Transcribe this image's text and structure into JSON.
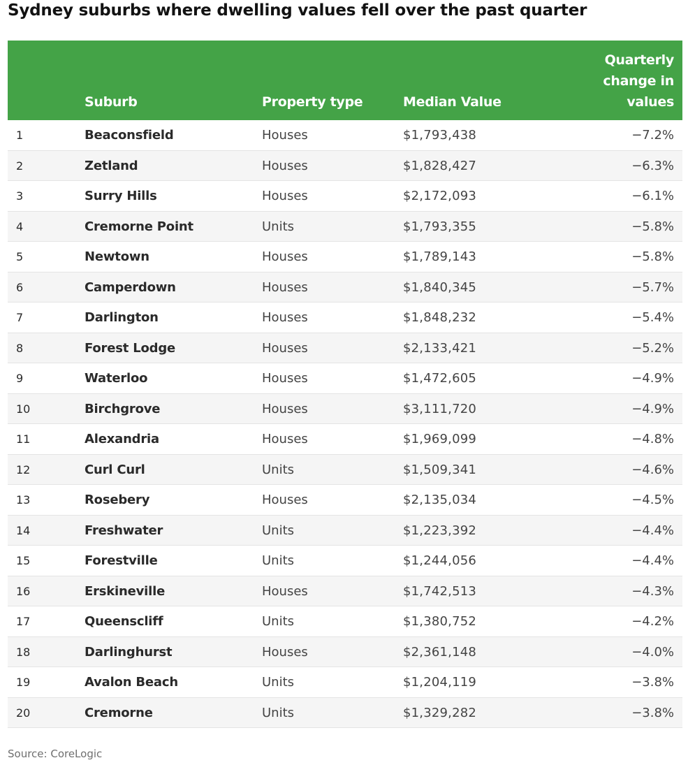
{
  "title": "Sydney suburbs where dwelling values fell over the past quarter",
  "table": {
    "headers": {
      "rank": "",
      "suburb": "Suburb",
      "property_type": "Property type",
      "median_value": "Median Value",
      "quarterly_change": "Quarterly change in values"
    },
    "rows": [
      {
        "rank": "1",
        "suburb": "Beaconsfield",
        "type": "Houses",
        "value": "$1,793,438",
        "change": "−7.2%"
      },
      {
        "rank": "2",
        "suburb": "Zetland",
        "type": "Houses",
        "value": "$1,828,427",
        "change": "−6.3%"
      },
      {
        "rank": "3",
        "suburb": "Surry Hills",
        "type": "Houses",
        "value": "$2,172,093",
        "change": "−6.1%"
      },
      {
        "rank": "4",
        "suburb": "Cremorne Point",
        "type": "Units",
        "value": "$1,793,355",
        "change": "−5.8%"
      },
      {
        "rank": "5",
        "suburb": "Newtown",
        "type": "Houses",
        "value": "$1,789,143",
        "change": "−5.8%"
      },
      {
        "rank": "6",
        "suburb": "Camperdown",
        "type": "Houses",
        "value": "$1,840,345",
        "change": "−5.7%"
      },
      {
        "rank": "7",
        "suburb": "Darlington",
        "type": "Houses",
        "value": "$1,848,232",
        "change": "−5.4%"
      },
      {
        "rank": "8",
        "suburb": "Forest Lodge",
        "type": "Houses",
        "value": "$2,133,421",
        "change": "−5.2%"
      },
      {
        "rank": "9",
        "suburb": "Waterloo",
        "type": "Houses",
        "value": "$1,472,605",
        "change": "−4.9%"
      },
      {
        "rank": "10",
        "suburb": "Birchgrove",
        "type": "Houses",
        "value": "$3,111,720",
        "change": "−4.9%"
      },
      {
        "rank": "11",
        "suburb": "Alexandria",
        "type": "Houses",
        "value": "$1,969,099",
        "change": "−4.8%"
      },
      {
        "rank": "12",
        "suburb": "Curl Curl",
        "type": "Units",
        "value": "$1,509,341",
        "change": "−4.6%"
      },
      {
        "rank": "13",
        "suburb": "Rosebery",
        "type": "Houses",
        "value": "$2,135,034",
        "change": "−4.5%"
      },
      {
        "rank": "14",
        "suburb": "Freshwater",
        "type": "Units",
        "value": "$1,223,392",
        "change": "−4.4%"
      },
      {
        "rank": "15",
        "suburb": "Forestville",
        "type": "Units",
        "value": "$1,244,056",
        "change": "−4.4%"
      },
      {
        "rank": "16",
        "suburb": "Erskineville",
        "type": "Houses",
        "value": "$1,742,513",
        "change": "−4.3%"
      },
      {
        "rank": "17",
        "suburb": "Queenscliff",
        "type": "Units",
        "value": "$1,380,752",
        "change": "−4.2%"
      },
      {
        "rank": "18",
        "suburb": "Darlinghurst",
        "type": "Houses",
        "value": "$2,361,148",
        "change": "−4.0%"
      },
      {
        "rank": "19",
        "suburb": "Avalon Beach",
        "type": "Units",
        "value": "$1,204,119",
        "change": "−3.8%"
      },
      {
        "rank": "20",
        "suburb": "Cremorne",
        "type": "Units",
        "value": "$1,329,282",
        "change": "−3.8%"
      }
    ]
  },
  "source": "Source: CoreLogic",
  "colors": {
    "header_bg": "#44a347",
    "header_text": "#ffffff",
    "alt_row_bg": "#f5f5f5"
  }
}
